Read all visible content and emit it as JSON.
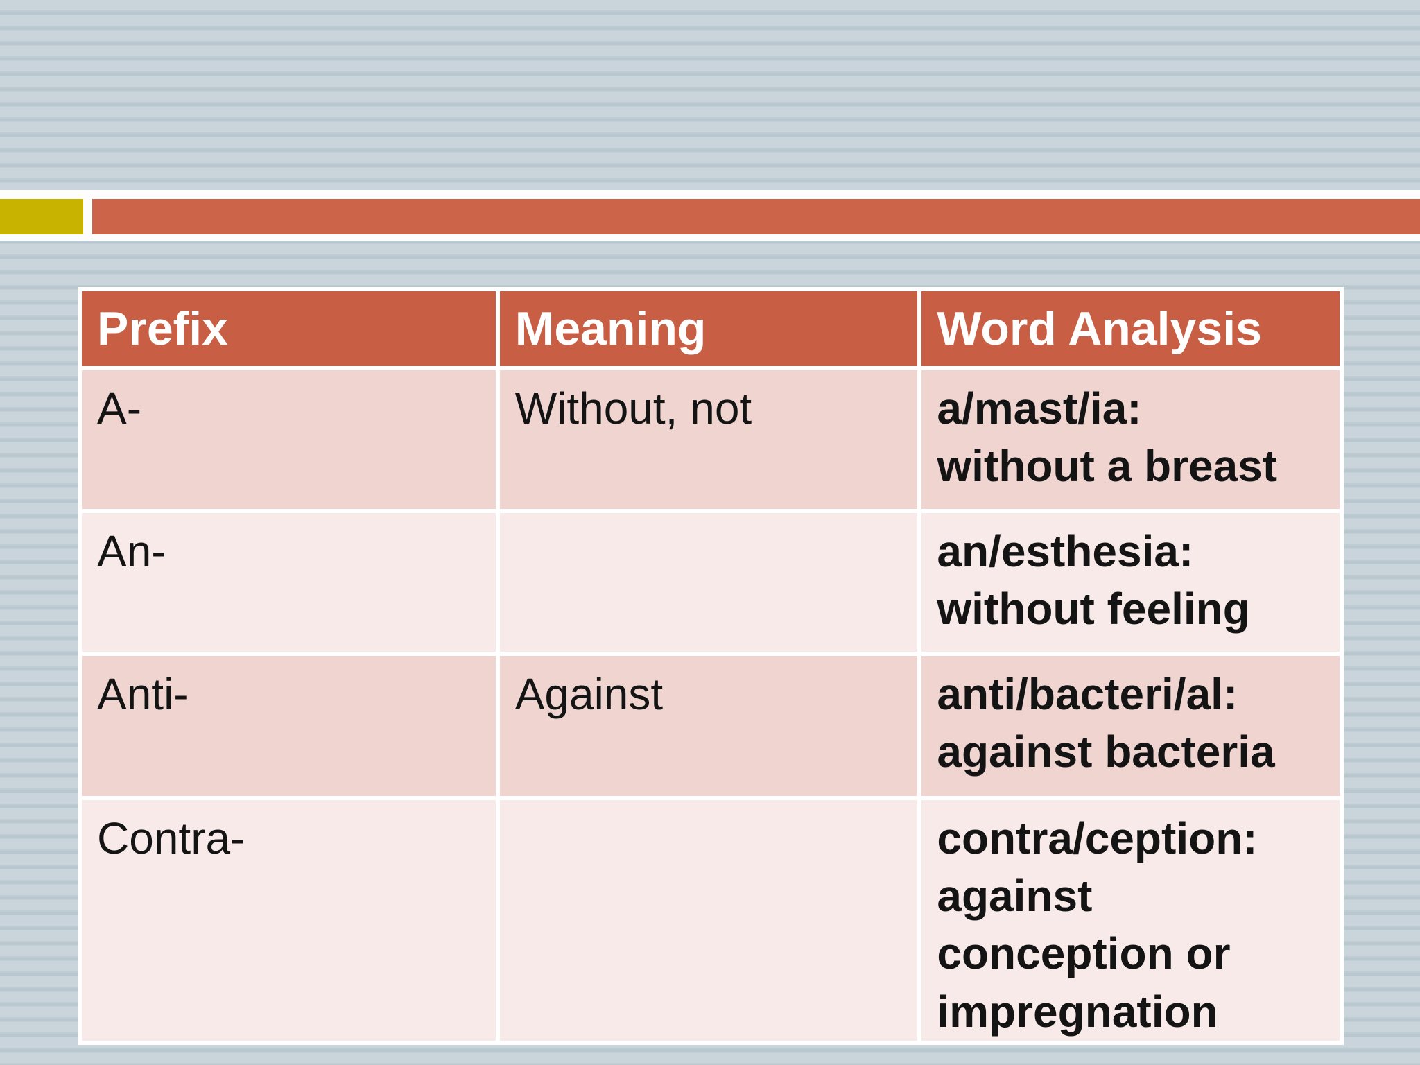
{
  "slide": {
    "background_color": "#C6D2D9",
    "stripe_color": "#B9C7CF"
  },
  "accent_bar": {
    "yellow_square_color": "#C8B400",
    "red_bar_color": "#CB6448",
    "band_color": "#FCFDFC"
  },
  "table": {
    "header_bg": "#C85F45",
    "header_text_color": "#FFFFFF",
    "row_bg_dark": "#EFD4D0",
    "row_bg_light": "#F8EAE9",
    "columns": [
      "Prefix",
      "Meaning",
      "Word Analysis"
    ],
    "rows": [
      {
        "prefix": "A-",
        "meaning": "Without, not",
        "word_analysis": "a/mast/ia:\nwithout a breast"
      },
      {
        "prefix": "An-",
        "meaning": "",
        "word_analysis": "an/esthesia:\nwithout feeling"
      },
      {
        "prefix": "Anti-",
        "meaning": "Against",
        "word_analysis": "anti/bacteri/al:\nagainst bacteria"
      },
      {
        "prefix": "Contra-",
        "meaning": "",
        "word_analysis": "contra/ception:\nagainst\nconception or\nimpregnation"
      }
    ]
  }
}
